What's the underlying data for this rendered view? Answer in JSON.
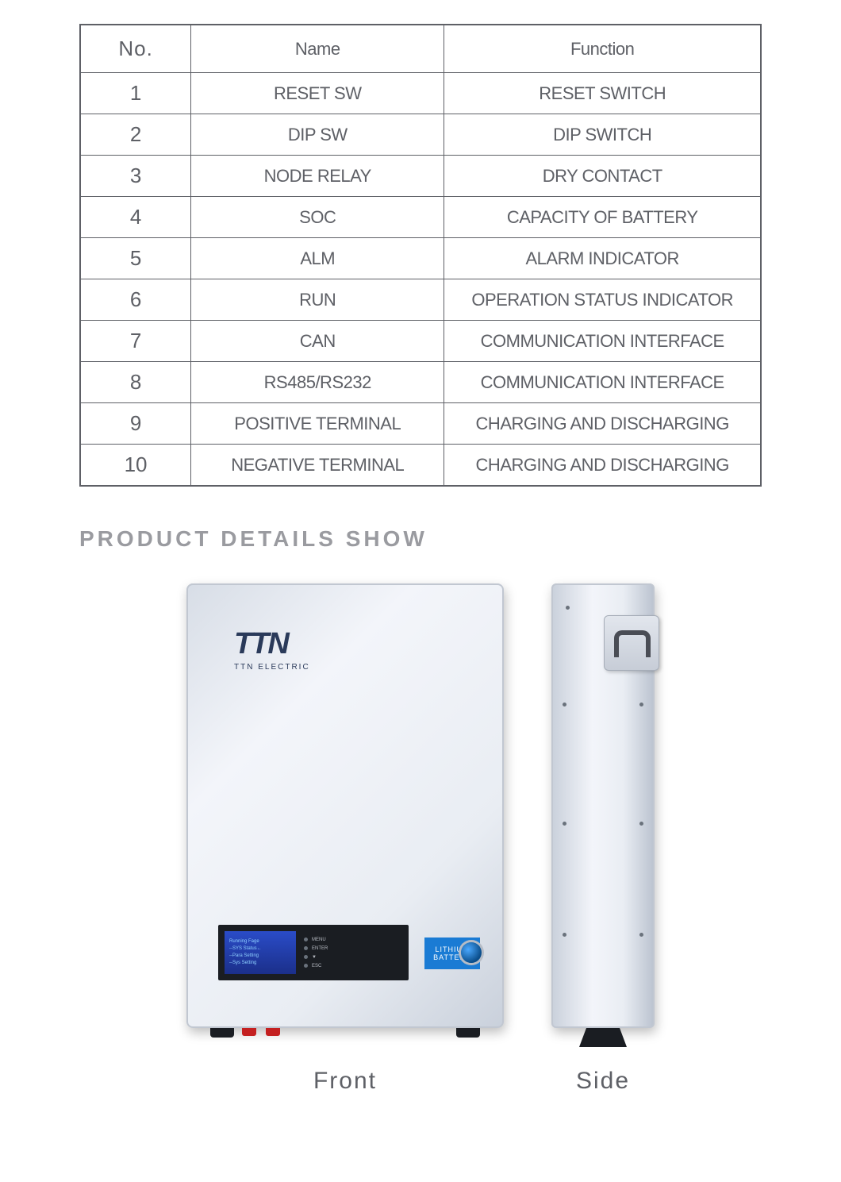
{
  "table": {
    "headers": {
      "no": "No.",
      "name": "Name",
      "func": "Function"
    },
    "rows": [
      {
        "no": "1",
        "name": "RESET SW",
        "func": "RESET SWITCH"
      },
      {
        "no": "2",
        "name": "DIP SW",
        "func": "DIP SWITCH"
      },
      {
        "no": "3",
        "name": "NODE RELAY",
        "func": "DRY CONTACT"
      },
      {
        "no": "4",
        "name": "SOC",
        "func": "CAPACITY OF BATTERY"
      },
      {
        "no": "5",
        "name": "ALM",
        "func": "ALARM INDICATOR"
      },
      {
        "no": "6",
        "name": "RUN",
        "func": "OPERATION STATUS INDICATOR"
      },
      {
        "no": "7",
        "name": "CAN",
        "func": "COMMUNICATION INTERFACE"
      },
      {
        "no": "8",
        "name": "RS485/RS232",
        "func": "COMMUNICATION INTERFACE"
      },
      {
        "no": "9",
        "name": "POSITIVE TERMINAL",
        "func": "CHARGING AND DISCHARGING"
      },
      {
        "no": "10",
        "name": "NEGATIVE TERMINAL",
        "func": "CHARGING AND DISCHARGING"
      }
    ]
  },
  "section_title": "PRODUCT DETAILS SHOW",
  "device": {
    "logo": "TTN",
    "logo_sub": "TTN ELECTRIC",
    "screen_lines": [
      "Running Fage",
      "--SYS Status←",
      "--Para Setting",
      "--Sys Setting"
    ],
    "leds": [
      "MENU",
      "ENTER",
      "▼",
      "ESC"
    ],
    "lithium_top": "LITHIUM",
    "lithium_bottom": "BATTERY"
  },
  "captions": {
    "front": "Front",
    "side": "Side"
  },
  "colors": {
    "border": "#5e6066",
    "text": "#5e6066",
    "title_gray": "#9a9ba0",
    "accent_blue": "#1a7bd4",
    "logo_navy": "#2a3a5a"
  }
}
